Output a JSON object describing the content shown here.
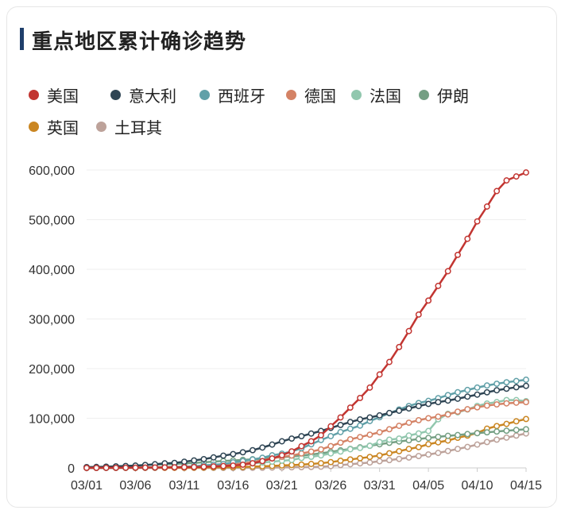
{
  "title": "重点地区累计确诊趋势",
  "chart_data": {
    "type": "line",
    "title": "重点地区累计确诊趋势",
    "xlabel": "",
    "ylabel": "",
    "ylim": [
      0,
      600000
    ],
    "y_ticks": [
      "600,000",
      "500,000",
      "400,000",
      "300,000",
      "200,000",
      "100,000",
      "0"
    ],
    "x_tick_labels": [
      "03/01",
      "03/06",
      "03/11",
      "03/16",
      "03/21",
      "03/26",
      "03/31",
      "04/05",
      "04/10",
      "04/15"
    ],
    "x": [
      "03/01",
      "03/02",
      "03/03",
      "03/04",
      "03/05",
      "03/06",
      "03/07",
      "03/08",
      "03/09",
      "03/10",
      "03/11",
      "03/12",
      "03/13",
      "03/14",
      "03/15",
      "03/16",
      "03/17",
      "03/18",
      "03/19",
      "03/20",
      "03/21",
      "03/22",
      "03/23",
      "03/24",
      "03/25",
      "03/26",
      "03/27",
      "03/28",
      "03/29",
      "03/30",
      "03/31",
      "04/01",
      "04/02",
      "04/03",
      "04/04",
      "04/05",
      "04/06",
      "04/07",
      "04/08",
      "04/09",
      "04/10",
      "04/11",
      "04/12",
      "04/13",
      "04/14",
      "04/15"
    ],
    "legend_position": "top-left",
    "grid": true,
    "series": [
      {
        "name": "美国",
        "color": "#c23531",
        "values": [
          100,
          150,
          220,
          300,
          400,
          520,
          700,
          950,
          1100,
          1300,
          1500,
          1800,
          2300,
          3000,
          3800,
          4700,
          6500,
          9400,
          13700,
          19100,
          25500,
          33300,
          43800,
          53700,
          65800,
          83800,
          101700,
          121500,
          140900,
          161800,
          188200,
          213400,
          243500,
          275600,
          308900,
          337100,
          366600,
          396200,
          429100,
          461400,
          496500,
          526400,
          557600,
          579000,
          587000,
          595000
        ]
      },
      {
        "name": "意大利",
        "color": "#2f4554",
        "values": [
          1700,
          2000,
          2500,
          3100,
          3900,
          4600,
          5900,
          7400,
          9200,
          10100,
          12500,
          15100,
          17700,
          21200,
          24700,
          27900,
          31500,
          35700,
          41000,
          47000,
          53600,
          59100,
          63900,
          69200,
          74400,
          80600,
          86500,
          92500,
          97700,
          101700,
          105800,
          110600,
          115200,
          119800,
          124600,
          128900,
          132500,
          135600,
          139400,
          143600,
          147600,
          152300,
          156400,
          159500,
          162500,
          165200
        ]
      },
      {
        "name": "西班牙",
        "color": "#61a0a8",
        "values": [
          80,
          110,
          160,
          220,
          280,
          400,
          500,
          670,
          1200,
          1700,
          2300,
          3100,
          5200,
          6400,
          7800,
          11200,
          13700,
          17100,
          20400,
          25400,
          28600,
          33100,
          39700,
          47600,
          56200,
          64000,
          72200,
          78800,
          85200,
          94400,
          102100,
          110200,
          117700,
          124700,
          130700,
          135000,
          140500,
          146700,
          152400,
          157000,
          161800,
          166000,
          169500,
          172500,
          175000,
          177600
        ]
      },
      {
        "name": "德国",
        "color": "#d48265",
        "values": [
          130,
          160,
          200,
          260,
          480,
          670,
          800,
          1000,
          1200,
          1500,
          1900,
          2700,
          3700,
          4600,
          5800,
          7300,
          9300,
          12300,
          15300,
          19800,
          22200,
          24900,
          29100,
          32900,
          37300,
          43900,
          50900,
          57700,
          62100,
          66900,
          71800,
          77900,
          84800,
          91100,
          96100,
          100100,
          103300,
          107700,
          113300,
          118200,
          122100,
          125500,
          127900,
          130000,
          131400,
          132500
        ]
      },
      {
        "name": "法国",
        "color": "#91c7ae",
        "values": [
          130,
          190,
          210,
          280,
          380,
          650,
          950,
          1100,
          1400,
          1800,
          2300,
          2900,
          3700,
          4500,
          5400,
          6600,
          7700,
          9100,
          10900,
          12600,
          14500,
          16000,
          19900,
          22300,
          25200,
          29200,
          32900,
          37600,
          40200,
          44500,
          52100,
          56900,
          59100,
          65200,
          69500,
          74400,
          98000,
          109000,
          112000,
          117700,
          124900,
          129700,
          132600,
          136700,
          136600,
          134500
        ]
      },
      {
        "name": "伊朗",
        "color": "#749f83",
        "values": [
          980,
          1500,
          2300,
          2900,
          3500,
          4700,
          5800,
          6600,
          7100,
          8000,
          9000,
          10000,
          11400,
          12700,
          13900,
          15000,
          16200,
          17400,
          18400,
          20600,
          21600,
          23000,
          24800,
          27000,
          29400,
          32300,
          35400,
          38300,
          41400,
          44600,
          47600,
          50500,
          53200,
          55700,
          58200,
          60500,
          62600,
          64600,
          66200,
          68200,
          70000,
          71700,
          73300,
          74900,
          76400,
          77900
        ]
      },
      {
        "name": "英国",
        "color": "#ca8622",
        "values": [
          36,
          40,
          51,
          85,
          115,
          160,
          206,
          273,
          321,
          382,
          456,
          590,
          800,
          1140,
          1390,
          1540,
          1950,
          2630,
          3300,
          4000,
          5000,
          5700,
          6650,
          8000,
          9500,
          11700,
          14500,
          17100,
          19500,
          22100,
          25100,
          29500,
          33700,
          38200,
          41900,
          47800,
          51600,
          55200,
          60700,
          65100,
          70300,
          79000,
          84300,
          88600,
          93900,
          98500
        ]
      },
      {
        "name": "土耳其",
        "color": "#bda29a",
        "values": [
          0,
          0,
          0,
          0,
          0,
          0,
          0,
          0,
          0,
          0,
          1,
          1,
          5,
          6,
          18,
          47,
          98,
          191,
          359,
          670,
          947,
          1236,
          1529,
          1872,
          2433,
          3629,
          5698,
          7402,
          9217,
          10827,
          13531,
          15679,
          18135,
          20921,
          23934,
          27069,
          30217,
          34109,
          38226,
          42282,
          47029,
          52167,
          56956,
          61049,
          65111,
          69392
        ]
      }
    ]
  }
}
